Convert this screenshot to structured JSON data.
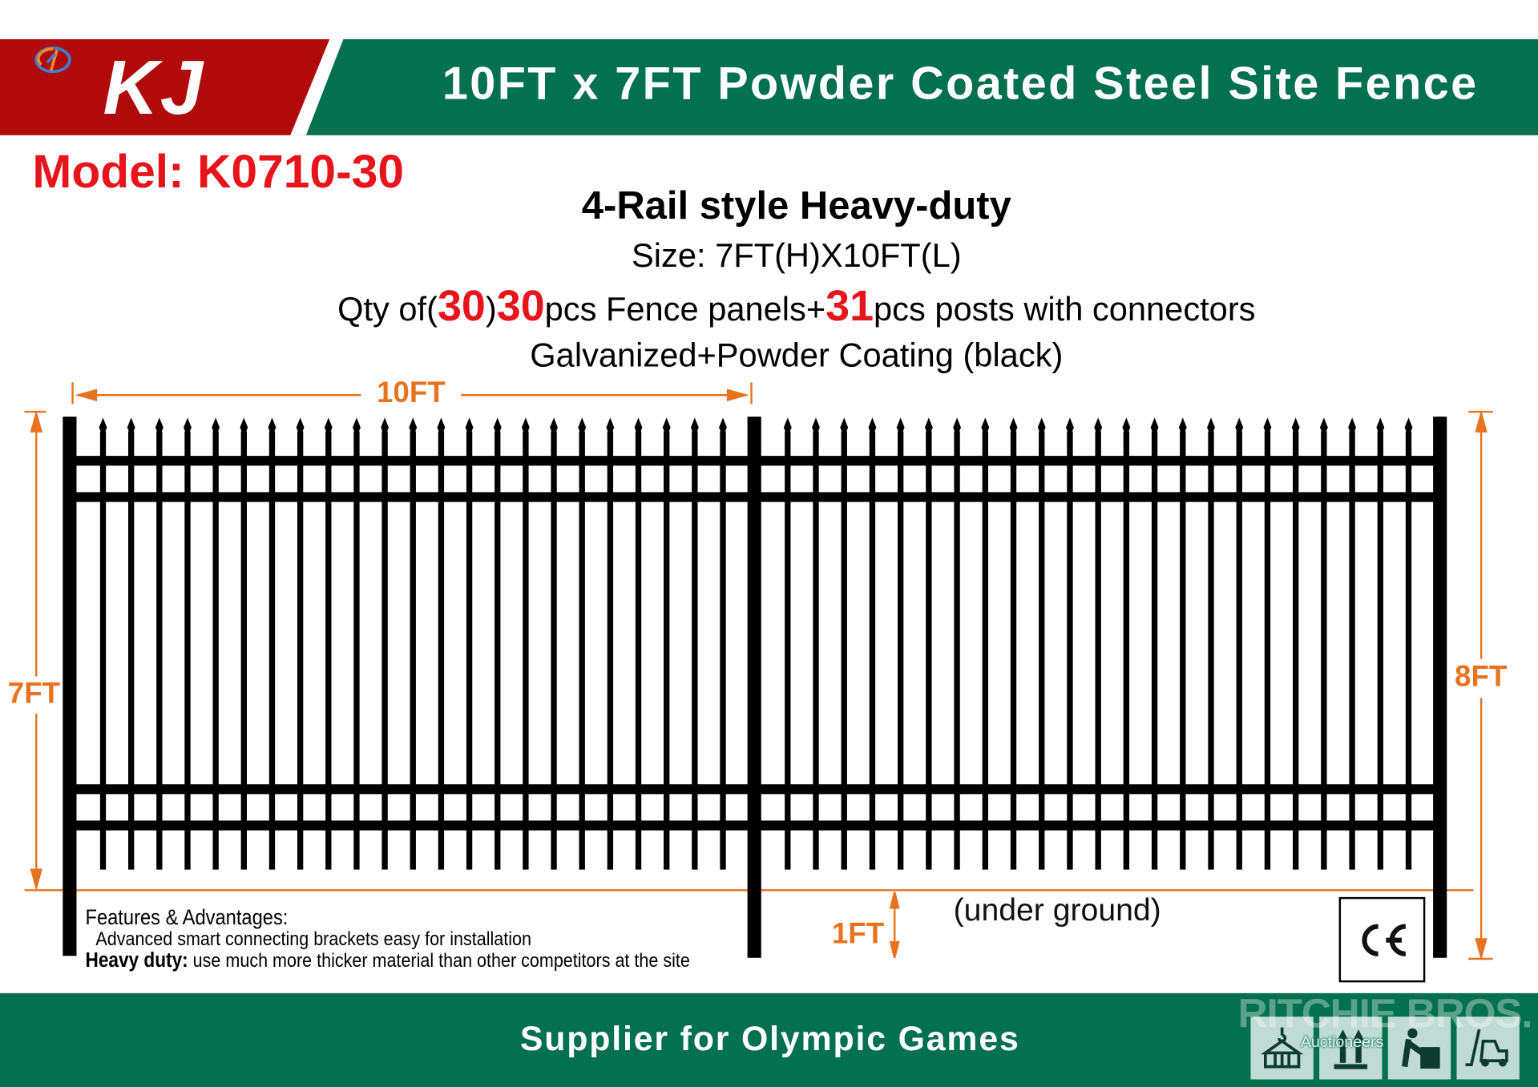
{
  "header": {
    "brand": "KJ",
    "title": "10FT x 7FT Powder Coated Steel Site Fence",
    "colors": {
      "red": "#b10a0a",
      "green": "#03704f",
      "white": "#ffffff"
    }
  },
  "model": "Model: K0710-30",
  "specs": {
    "style": "4-Rail style Heavy-duty",
    "size": "Size: 7FT(H)X10FT(L)",
    "qty_prefix": "Qty of(",
    "qty_paren_num": "30",
    "qty_paren_close": ")",
    "qty_panels_num": "30",
    "qty_panels_text": "pcs Fence panels+",
    "qty_posts_num": "31",
    "qty_posts_text": "pcs posts with connectors",
    "finish": "Galvanized+Powder Coating (black)"
  },
  "dimensions": {
    "width": "10FT",
    "height": "7FT",
    "post_height": "8FT",
    "underground": "1FT",
    "underground_note": "(under ground)",
    "accent_color": "#e8731e"
  },
  "features": {
    "heading": "Features & Advantages:",
    "line1": "Advanced smart connecting brackets easy for installation",
    "line2_bold": "Heavy duty:",
    "line2": " use much more thicker material than other competitors at the site"
  },
  "certification": "CE",
  "footer": {
    "text": "Supplier for  Olympic Games",
    "watermark": "RITCHIE BROS.",
    "watermark_sub": "Auctioneers",
    "icons": [
      "crane-lift-icon",
      "this-way-up-icon",
      "heavy-lifting-icon",
      "forklift-icon"
    ]
  }
}
